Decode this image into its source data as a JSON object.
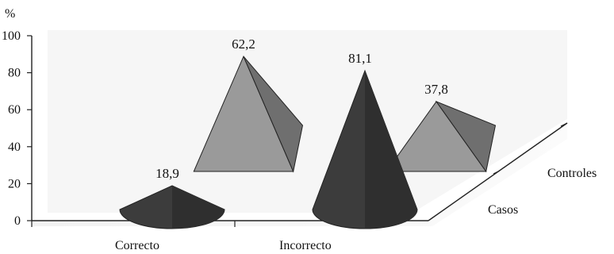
{
  "chart_data": {
    "type": "bar",
    "style": "3d-pyramid-cone",
    "y_unit_label": "%",
    "ylim": [
      0,
      100
    ],
    "y_ticks": [
      "0",
      "20",
      "40",
      "60",
      "80",
      "100"
    ],
    "categories": [
      "Correcto",
      "Incorrecto"
    ],
    "series": [
      {
        "name": "Casos",
        "values": [
          18.9,
          81.1
        ],
        "value_labels": [
          "18,9",
          "81,1"
        ],
        "shape": "cone",
        "color": "#3c3c3c"
      },
      {
        "name": "Controles",
        "values": [
          62.2,
          37.8
        ],
        "value_labels": [
          "62,2",
          "37,8"
        ],
        "shape": "pyramid",
        "color": "#9a9a9a"
      }
    ],
    "grid": false,
    "legend": "depth-axis-labels"
  }
}
